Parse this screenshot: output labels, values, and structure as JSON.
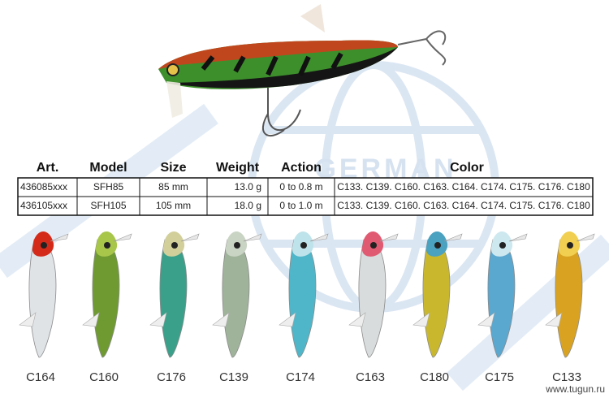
{
  "logo": "GERMAN",
  "table": {
    "headers": [
      "Art.",
      "Model",
      "Size",
      "Weight",
      "Action",
      "Color"
    ],
    "rows": [
      [
        "436085xxx",
        "SFH85",
        "85 mm",
        "13.0 g",
        "0 to 0.8 m",
        "C133. C139. C160. C163. C164. C174. C175. C176. C180"
      ],
      [
        "436105xxx",
        "SFH105",
        "105 mm",
        "18.0 g",
        "0 to 1.0 m",
        "C133. C139. C160. C163. C164. C174. C175. C176. C180"
      ]
    ]
  },
  "lures": [
    "C164",
    "C160",
    "C176",
    "C139",
    "C174",
    "C163",
    "C180",
    "C175",
    "C133"
  ],
  "watermark": "www.tugun.ru"
}
